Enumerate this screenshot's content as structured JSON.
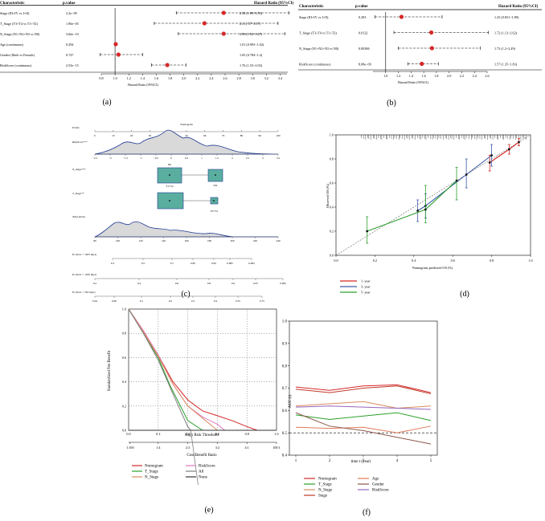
{
  "panel_captions": [
    "(a)",
    "(b)",
    "(c)",
    "(d)",
    "(e)",
    "(f)"
  ],
  "chart_data": [
    {
      "id": "a",
      "type": "forest",
      "headers": [
        "Characteristic",
        "p.value",
        "Hazard Ratio (95%CI)"
      ],
      "xlabel": "Hazard Ratio (95%CI)",
      "xlim": [
        0.8,
        3.5
      ],
      "ticks": [
        "0.8",
        "1.0",
        "1.2",
        "1.4",
        "1.6",
        "1.8",
        "2.0",
        "2.2",
        "2.4",
        "2.6",
        "2.8",
        "3.0",
        "3.2",
        "3.4"
      ],
      "rows": [
        {
          "label": "Stage (III+IV vs I+II)",
          "p": "2.2e−09",
          "text": "2.58 (1.89~3.53)",
          "hr": 2.58,
          "lo": 1.89,
          "hi": 3.53
        },
        {
          "label": "T_Stage (T3+T4 vs T1+T2)",
          "p": "1.96e−05",
          "text": "2.3 (1.57~3.37)",
          "hr": 2.3,
          "lo": 1.57,
          "hi": 3.37
        },
        {
          "label": "N_Stage (N1+N2+N3 vs N0)",
          "p": "3.66e−10",
          "text": "2.58 (1.92~3.47)",
          "hr": 2.58,
          "lo": 1.92,
          "hi": 3.47
        },
        {
          "label": "Age (continuous)",
          "p": "0.294",
          "text": "1.01 (0.993~1.02)",
          "hr": 1.01,
          "lo": 0.993,
          "hi": 1.02
        },
        {
          "label": "Gender (Male vs Female)",
          "p": "0.747",
          "text": "1.05 (0.784~1.4)",
          "hr": 1.05,
          "lo": 0.784,
          "hi": 1.4
        },
        {
          "label": "RiskScore (continuous)",
          "p": "2.53e−15",
          "text": "1.76 (1.53~2.03)",
          "hr": 1.76,
          "lo": 1.53,
          "hi": 2.03
        }
      ]
    },
    {
      "id": "b",
      "type": "forest",
      "headers": [
        "Characteristic",
        "p.value",
        "Hazard Ratio (95%CI)"
      ],
      "xlabel": "Hazard Ratio (95%CI)",
      "xlim": [
        0.8,
        2.6
      ],
      "ticks": [
        "1.0",
        "1.2",
        "1.4",
        "1.6",
        "1.8",
        "2.0",
        "2.2",
        "2.4",
        "2.6"
      ],
      "rows": [
        {
          "label": "Stage (III+IV vs I+II)",
          "p": "0.283",
          "text": "1.25 (0.831~1.89)",
          "hr": 1.25,
          "lo": 0.831,
          "hi": 1.89
        },
        {
          "label": "T_Stage (T3+T4 vs T1+T2)",
          "p": "0.0122",
          "text": "1.72 (1.13~2.62)",
          "hr": 1.72,
          "lo": 1.13,
          "hi": 2.62
        },
        {
          "label": "N_Stage (N1+N2+N3 vs N0)",
          "p": "0.00306",
          "text": "1.73 (1.2~2.49)",
          "hr": 1.73,
          "lo": 1.2,
          "hi": 2.49
        },
        {
          "label": "RiskScore (continuous)",
          "p": "8.08e−09",
          "text": "1.57 (1.35~1.83)",
          "hr": 1.57,
          "lo": 1.35,
          "hi": 1.83
        }
      ]
    },
    {
      "id": "c",
      "type": "nomogram",
      "title": "Nomogram",
      "scales": [
        {
          "label": "Points",
          "ticks": [
            "0",
            "10",
            "20",
            "30",
            "40",
            "50",
            "60",
            "70",
            "80",
            "90",
            "100"
          ]
        },
        {
          "label": "RiskScore***",
          "ticks": [
            "−2.5",
            "−2",
            "−1.5",
            "−1",
            "−0.5",
            "0",
            "0.5",
            "1",
            "1.5",
            "2",
            "2.5",
            "3",
            "3.5"
          ]
        },
        {
          "label": "N_Stage***",
          "categories": [
            "N0",
            "NX",
            "T1+T2"
          ]
        },
        {
          "label": "T_Stage**",
          "categories": [
            "T3+T4"
          ]
        },
        {
          "label": "Total points",
          "ticks": [
            "80",
            "100",
            "120",
            "140",
            "160",
            "180",
            "200",
            "220",
            "240"
          ]
        },
        {
          "label": "Pr (time < 1825 days)",
          "ticks": [
            "0.3",
            "0.5",
            "0.7",
            "0.85",
            "0.95",
            "0.985",
            "0.995"
          ]
        },
        {
          "label": "Pr (time < 1095 days)",
          "ticks": [
            "0.2",
            "0.4",
            "0.6",
            "0.8",
            "0.9",
            "0.97",
            "0.995"
          ]
        },
        {
          "label": "Pr (time < 365 days)",
          "ticks": [
            "0.04",
            "0.06",
            "0.1",
            "0.2",
            "0.3",
            "0.4",
            "0.55",
            "0.75"
          ]
        }
      ]
    },
    {
      "id": "d",
      "type": "calibration",
      "xlabel": "Nomogram–predicted OS (%)",
      "ylabel": "Observed OS (%)",
      "xlim": [
        0.0,
        1.0
      ],
      "ylim": [
        0.0,
        1.0
      ],
      "xticks": [
        "0.0",
        "0.2",
        "0.4",
        "0.6",
        "0.8",
        "1.0"
      ],
      "yticks": [
        "0.0",
        "0.2",
        "0.4",
        "0.6",
        "0.8",
        "1.0"
      ],
      "legend": [
        "1−year",
        "3−year",
        "5−year"
      ],
      "colors": [
        "#d62728",
        "#3b5ba9",
        "#2ca02c"
      ],
      "series": [
        {
          "name": "1−year",
          "x": [
            0.79,
            0.89,
            0.94
          ],
          "y": [
            0.77,
            0.88,
            0.94
          ],
          "lo": [
            0.7,
            0.84,
            0.91
          ],
          "hi": [
            0.83,
            0.92,
            0.97
          ]
        },
        {
          "name": "3−year",
          "x": [
            0.42,
            0.46,
            0.67,
            0.8
          ],
          "y": [
            0.37,
            0.41,
            0.67,
            0.83
          ],
          "lo": [
            0.28,
            0.31,
            0.56,
            0.74
          ],
          "hi": [
            0.46,
            0.51,
            0.8,
            0.92
          ]
        },
        {
          "name": "5−year",
          "x": [
            0.16,
            0.46,
            0.62
          ],
          "y": [
            0.2,
            0.38,
            0.62
          ],
          "lo": [
            0.1,
            0.27,
            0.46
          ],
          "hi": [
            0.32,
            0.58,
            0.73
          ]
        }
      ]
    },
    {
      "id": "e",
      "type": "line",
      "xlabel": "High Risk Threshold",
      "xlabel2": "Cost:Benefit Ratio",
      "ylabel": "Standardized Net Benefit",
      "xlim": [
        0.0,
        1.0
      ],
      "ylim": [
        0.0,
        1.0
      ],
      "xticks": [
        "0.0",
        "0.2",
        "0.4",
        "0.6",
        "0.8",
        "1.0"
      ],
      "yticks": [
        "0.0",
        "0.2",
        "0.4",
        "0.6",
        "0.8",
        "1.0"
      ],
      "ratio_ticks": [
        "1:100",
        "1:4",
        "2:3",
        "3:2",
        "4:1",
        "100:1"
      ],
      "legend": [
        "Nomogram",
        "RiskScore",
        "T_Stage",
        "All",
        "N_Stage",
        "None"
      ],
      "colors": {
        "Nomogram": "#d62728",
        "RiskScore": "#e377c2",
        "T_Stage": "#2ca02c",
        "All": "#7f7f7f",
        "N_Stage": "#d98d5f",
        "None": "#333333"
      },
      "series": [
        {
          "name": "Nomogram",
          "x": [
            0,
            0.1,
            0.2,
            0.3,
            0.4,
            0.5,
            0.6,
            0.7,
            0.8,
            0.87
          ],
          "y": [
            1.0,
            0.82,
            0.62,
            0.4,
            0.25,
            0.16,
            0.12,
            0.08,
            0.03,
            0.0
          ]
        },
        {
          "name": "RiskScore",
          "x": [
            0,
            0.1,
            0.2,
            0.3,
            0.4,
            0.5,
            0.6,
            0.65
          ],
          "y": [
            1.0,
            0.82,
            0.62,
            0.38,
            0.2,
            0.11,
            0.05,
            0.0
          ]
        },
        {
          "name": "T_Stage",
          "x": [
            0,
            0.1,
            0.2,
            0.28,
            0.4,
            0.5
          ],
          "y": [
            1.0,
            0.8,
            0.6,
            0.37,
            0.08,
            0.0
          ]
        },
        {
          "name": "N_Stage",
          "x": [
            0,
            0.1,
            0.2,
            0.3,
            0.4,
            0.5,
            0.6
          ],
          "y": [
            1.0,
            0.81,
            0.61,
            0.38,
            0.2,
            0.1,
            0.0
          ]
        },
        {
          "name": "All",
          "x": [
            0,
            0.1,
            0.2,
            0.3,
            0.4,
            0.42
          ],
          "y": [
            1.0,
            0.8,
            0.58,
            0.3,
            0.03,
            0.0
          ]
        },
        {
          "name": "None",
          "x": [
            0,
            1.0
          ],
          "y": [
            0,
            0
          ]
        }
      ]
    },
    {
      "id": "f",
      "type": "line",
      "xlabel": "time t (year)",
      "ylabel": "AUC (t)",
      "xlim": [
        1,
        5
      ],
      "ylim": [
        0.4,
        1.0
      ],
      "xticks": [
        "1",
        "2",
        "3",
        "4",
        "5"
      ],
      "yticks": [
        "0.4",
        "0.5",
        "0.6",
        "0.7",
        "0.8",
        "0.9",
        "1.0"
      ],
      "legend": [
        "Nomogram",
        "Age",
        "T_Stage",
        "Gender",
        "N_Stage",
        "RiskScore",
        "Stage"
      ],
      "colors": {
        "Nomogram": "#d62728",
        "Age": "#e07b5a",
        "T_Stage": "#2ca02c",
        "Gender": "#8c564b",
        "N_Stage": "#d98d5f",
        "RiskScore": "#9467bd",
        "Stage": "#c0392b"
      },
      "series": [
        {
          "name": "Nomogram",
          "x": [
            1,
            2,
            3,
            4,
            5
          ],
          "y": [
            0.705,
            0.69,
            0.71,
            0.715,
            0.68
          ]
        },
        {
          "name": "Stage",
          "x": [
            1,
            2,
            3,
            4,
            5
          ],
          "y": [
            0.695,
            0.68,
            0.7,
            0.71,
            0.675
          ]
        },
        {
          "name": "N_Stage",
          "x": [
            1,
            2,
            3,
            4,
            5
          ],
          "y": [
            0.62,
            0.63,
            0.64,
            0.61,
            0.62
          ]
        },
        {
          "name": "RiskScore",
          "x": [
            1,
            2,
            3,
            4,
            5
          ],
          "y": [
            0.615,
            0.62,
            0.615,
            0.61,
            0.605
          ]
        },
        {
          "name": "T_Stage",
          "x": [
            1,
            2,
            3,
            4,
            5
          ],
          "y": [
            0.58,
            0.56,
            0.575,
            0.59,
            0.555
          ]
        },
        {
          "name": "Age",
          "x": [
            1,
            2,
            3,
            4,
            5
          ],
          "y": [
            0.525,
            0.52,
            0.525,
            0.5,
            0.53
          ]
        },
        {
          "name": "Gender",
          "x": [
            1,
            2,
            3,
            4,
            5
          ],
          "y": [
            0.59,
            0.53,
            0.51,
            0.48,
            0.45
          ]
        }
      ],
      "refline": 0.5
    }
  ]
}
